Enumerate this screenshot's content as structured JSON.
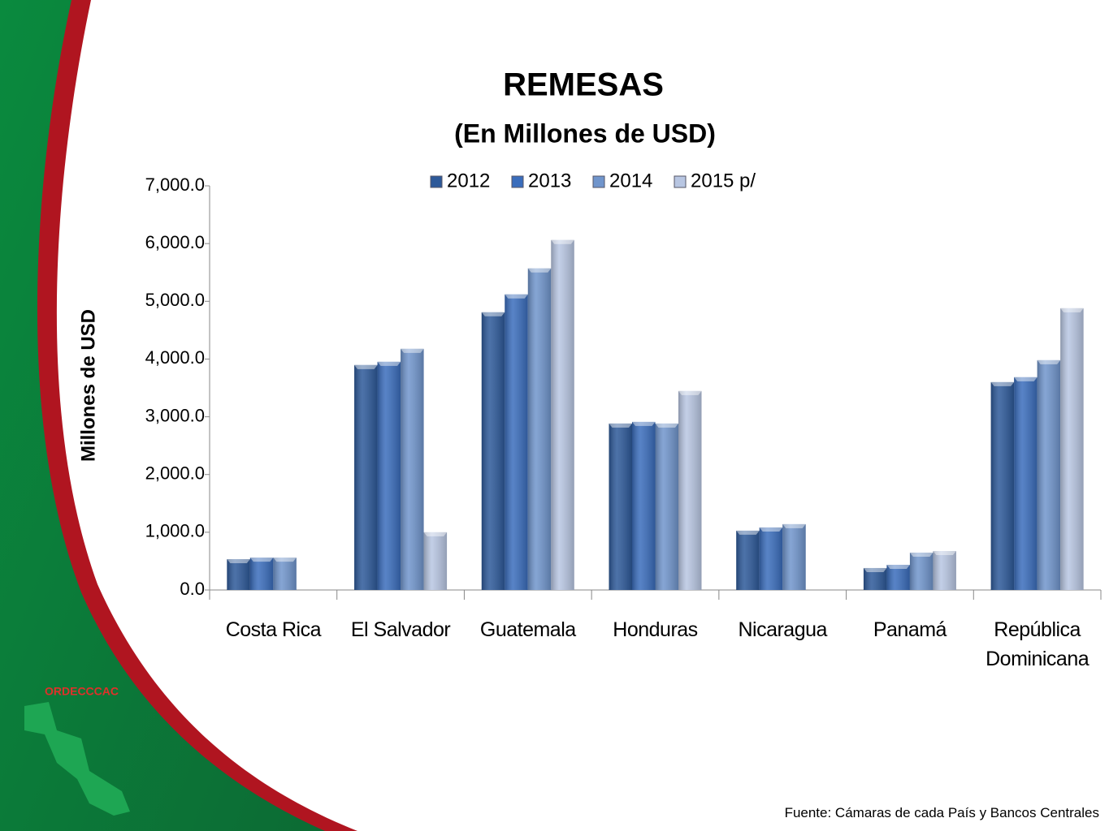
{
  "chart_data": {
    "type": "bar",
    "title": "REMESAS",
    "subtitle": "(En Millones de USD)",
    "y_label": "Millones de USD",
    "categories": [
      "Costa Rica",
      "El Salvador",
      "Guatemala",
      "Honduras",
      "Nicaragua",
      "Panamá",
      "República Dominicana"
    ],
    "series": [
      {
        "name": "2012",
        "color": "#2d5999",
        "values": [
          534,
          3896,
          4810,
          2883,
          1027,
          380,
          3600
        ]
      },
      {
        "name": "2013",
        "color": "#3a6dbc",
        "values": [
          560,
          3952,
          5120,
          2911,
          1083,
          436,
          3685
        ]
      },
      {
        "name": "2014",
        "color": "#7095cc",
        "values": [
          560,
          4177,
          5570,
          2883,
          1140,
          647,
          3980
        ]
      },
      {
        "name": "2015 p/",
        "color": "#b8c6e2",
        "values": [
          null,
          1000,
          6062,
          3446,
          null,
          675,
          4880
        ]
      }
    ],
    "ylim": [
      0,
      7000
    ],
    "yticks": [
      {
        "value": 0,
        "label": "0.0"
      },
      {
        "value": 1000,
        "label": "1,000.0"
      },
      {
        "value": 2000,
        "label": "2,000.0"
      },
      {
        "value": 3000,
        "label": "3,000.0"
      },
      {
        "value": 4000,
        "label": "4,000.0"
      },
      {
        "value": 5000,
        "label": "5,000.0"
      },
      {
        "value": 6000,
        "label": "6,000.0"
      },
      {
        "value": 7000,
        "label": "7,000.0"
      }
    ],
    "grid": false,
    "legend": "top",
    "logo": "ORDECCCAC",
    "source": "Fuente: Cámaras de cada País y Bancos Centrales"
  }
}
